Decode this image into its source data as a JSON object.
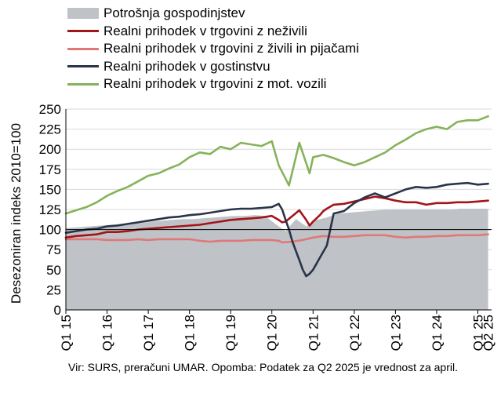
{
  "legend": [
    {
      "label": "Potrošnja gospodinjstev",
      "kind": "area",
      "color": "#bfc3c7"
    },
    {
      "label": "Realni prihodek v trgovini z neživili",
      "kind": "line",
      "color": "#a31418"
    },
    {
      "label": "Realni prihodek v trgovini z živili in pijačami",
      "kind": "line",
      "color": "#e07878"
    },
    {
      "label": "Realni prihodek v gostinstvu",
      "kind": "line",
      "color": "#2a3448"
    },
    {
      "label": "Realni prihodek v trgovini z mot. vozili",
      "kind": "line",
      "color": "#85b35b"
    }
  ],
  "note": "Vir: SURS, preračuni UMAR. Opomba: Podatek za Q2 2025 je vrednost za april.",
  "chart_data": {
    "type": "line",
    "ylabel": "Desezoniran indeks 2010=100",
    "ylim": [
      0,
      250
    ],
    "yticks": [
      0,
      25,
      50,
      75,
      100,
      125,
      150,
      175,
      200,
      225,
      250
    ],
    "reference_line": 100,
    "x_tick_labels": [
      "Q1 15",
      "Q1 16",
      "Q1 17",
      "Q1 18",
      "Q1 19",
      "Q1 20",
      "Q1 21",
      "Q1 22",
      "Q1 23",
      "Q1 24",
      "Q1 25",
      "Q2 25"
    ],
    "x_labels_monthly_start": "2015-01",
    "months": 124,
    "area_series": {
      "name": "Potrošnja gospodinjstev",
      "color": "#bfc3c7",
      "quarters": [
        "Q1 15",
        "Q2 15",
        "Q3 15",
        "Q4 15",
        "Q1 16",
        "Q2 16",
        "Q3 16",
        "Q4 16",
        "Q1 17",
        "Q2 17",
        "Q3 17",
        "Q4 17",
        "Q1 18",
        "Q2 18",
        "Q3 18",
        "Q4 18",
        "Q1 19",
        "Q2 19",
        "Q3 19",
        "Q4 19",
        "Q1 20",
        "Q2 20",
        "Q3 20",
        "Q4 20",
        "Q1 21",
        "Q2 21",
        "Q3 21",
        "Q4 21",
        "Q1 22",
        "Q2 22",
        "Q3 22",
        "Q4 22",
        "Q1 23",
        "Q2 23",
        "Q3 23",
        "Q4 23",
        "Q1 24",
        "Q2 24",
        "Q3 24",
        "Q4 24",
        "Q1 25"
      ],
      "values": [
        102,
        103,
        104,
        105,
        106,
        107,
        108,
        108,
        110,
        111,
        112,
        113,
        113,
        114,
        115,
        116,
        117,
        117,
        118,
        117,
        107,
        98,
        113,
        104,
        112,
        115,
        120,
        121,
        122,
        123,
        124,
        125,
        125,
        125,
        125,
        125,
        125,
        125,
        126,
        126,
        126
      ]
    },
    "series": [
      {
        "name": "Realni prihodek v trgovini z neživili",
        "color": "#a31418",
        "x": [
          "2015-01",
          "2015-04",
          "2015-07",
          "2015-10",
          "2016-01",
          "2016-04",
          "2016-07",
          "2016-10",
          "2017-01",
          "2017-04",
          "2017-07",
          "2017-10",
          "2018-01",
          "2018-04",
          "2018-07",
          "2018-10",
          "2019-01",
          "2019-04",
          "2019-07",
          "2019-10",
          "2020-01",
          "2020-03",
          "2020-04",
          "2020-05",
          "2020-07",
          "2020-09",
          "2020-10",
          "2020-11",
          "2020-12",
          "2021-01",
          "2021-03",
          "2021-04",
          "2021-05",
          "2021-07",
          "2021-10",
          "2022-01",
          "2022-04",
          "2022-07",
          "2022-10",
          "2023-01",
          "2023-04",
          "2023-07",
          "2023-10",
          "2024-01",
          "2024-04",
          "2024-07",
          "2024-10",
          "2025-01",
          "2025-04"
        ],
        "y": [
          90,
          92,
          93,
          94,
          97,
          97,
          98,
          100,
          101,
          102,
          103,
          104,
          105,
          106,
          108,
          110,
          112,
          113,
          114,
          115,
          117,
          112,
          109,
          110,
          117,
          124,
          118,
          112,
          105,
          110,
          118,
          123,
          126,
          131,
          132,
          135,
          138,
          141,
          139,
          136,
          134,
          134,
          131,
          133,
          133,
          134,
          134,
          135,
          136
        ]
      },
      {
        "name": "Realni prihodek v trgovini z živili in pijačami",
        "color": "#e07878",
        "x": [
          "2015-01",
          "2015-04",
          "2015-07",
          "2015-10",
          "2016-01",
          "2016-04",
          "2016-07",
          "2016-10",
          "2017-01",
          "2017-04",
          "2017-07",
          "2017-10",
          "2018-01",
          "2018-04",
          "2018-07",
          "2018-10",
          "2019-01",
          "2019-04",
          "2019-07",
          "2019-10",
          "2020-01",
          "2020-03",
          "2020-04",
          "2020-07",
          "2020-10",
          "2021-01",
          "2021-04",
          "2021-07",
          "2021-10",
          "2022-01",
          "2022-04",
          "2022-07",
          "2022-10",
          "2023-01",
          "2023-04",
          "2023-07",
          "2023-10",
          "2024-01",
          "2024-04",
          "2024-07",
          "2024-10",
          "2025-01",
          "2025-04"
        ],
        "y": [
          88,
          88,
          88,
          88,
          87,
          87,
          87,
          88,
          87,
          88,
          88,
          88,
          88,
          86,
          85,
          86,
          86,
          86,
          87,
          87,
          87,
          86,
          84,
          85,
          87,
          90,
          92,
          91,
          91,
          92,
          93,
          93,
          93,
          91,
          90,
          91,
          91,
          92,
          92,
          93,
          93,
          93,
          94
        ]
      },
      {
        "name": "Realni prihodek v gostinstvu",
        "color": "#2a3448",
        "x": [
          "2015-01",
          "2015-04",
          "2015-07",
          "2015-10",
          "2016-01",
          "2016-04",
          "2016-07",
          "2016-10",
          "2017-01",
          "2017-04",
          "2017-07",
          "2017-10",
          "2018-01",
          "2018-04",
          "2018-07",
          "2018-10",
          "2019-01",
          "2019-04",
          "2019-07",
          "2019-10",
          "2020-01",
          "2020-03",
          "2020-04",
          "2020-05",
          "2020-06",
          "2020-07",
          "2020-09",
          "2020-10",
          "2020-11",
          "2020-12",
          "2021-01",
          "2021-03",
          "2021-05",
          "2021-07",
          "2021-10",
          "2022-01",
          "2022-04",
          "2022-07",
          "2022-10",
          "2023-01",
          "2023-04",
          "2023-07",
          "2023-10",
          "2024-01",
          "2024-04",
          "2024-07",
          "2024-10",
          "2025-01",
          "2025-04"
        ],
        "y": [
          96,
          98,
          100,
          101,
          104,
          105,
          107,
          109,
          111,
          113,
          115,
          116,
          118,
          119,
          121,
          123,
          125,
          126,
          126,
          127,
          128,
          132,
          125,
          112,
          100,
          85,
          62,
          50,
          42,
          45,
          50,
          65,
          80,
          120,
          123,
          133,
          140,
          145,
          140,
          145,
          150,
          153,
          152,
          153,
          156,
          157,
          158,
          156,
          157
        ]
      },
      {
        "name": "Realni prihodek v trgovini z mot. vozili",
        "color": "#85b35b",
        "x": [
          "2015-01",
          "2015-04",
          "2015-07",
          "2015-10",
          "2016-01",
          "2016-04",
          "2016-07",
          "2016-10",
          "2017-01",
          "2017-04",
          "2017-07",
          "2017-10",
          "2018-01",
          "2018-04",
          "2018-07",
          "2018-10",
          "2019-01",
          "2019-04",
          "2019-07",
          "2019-10",
          "2020-01",
          "2020-03",
          "2020-06",
          "2020-09",
          "2020-12",
          "2021-01",
          "2021-04",
          "2021-07",
          "2021-10",
          "2022-01",
          "2022-04",
          "2022-07",
          "2022-10",
          "2023-01",
          "2023-04",
          "2023-07",
          "2023-10",
          "2024-01",
          "2024-04",
          "2024-07",
          "2024-10",
          "2025-01",
          "2025-04"
        ],
        "y": [
          120,
          124,
          128,
          134,
          142,
          148,
          153,
          160,
          167,
          170,
          176,
          181,
          190,
          196,
          194,
          203,
          200,
          208,
          206,
          204,
          210,
          180,
          155,
          208,
          170,
          190,
          193,
          189,
          184,
          180,
          184,
          190,
          196,
          205,
          212,
          220,
          225,
          228,
          225,
          234,
          236,
          236,
          241
        ]
      }
    ]
  }
}
